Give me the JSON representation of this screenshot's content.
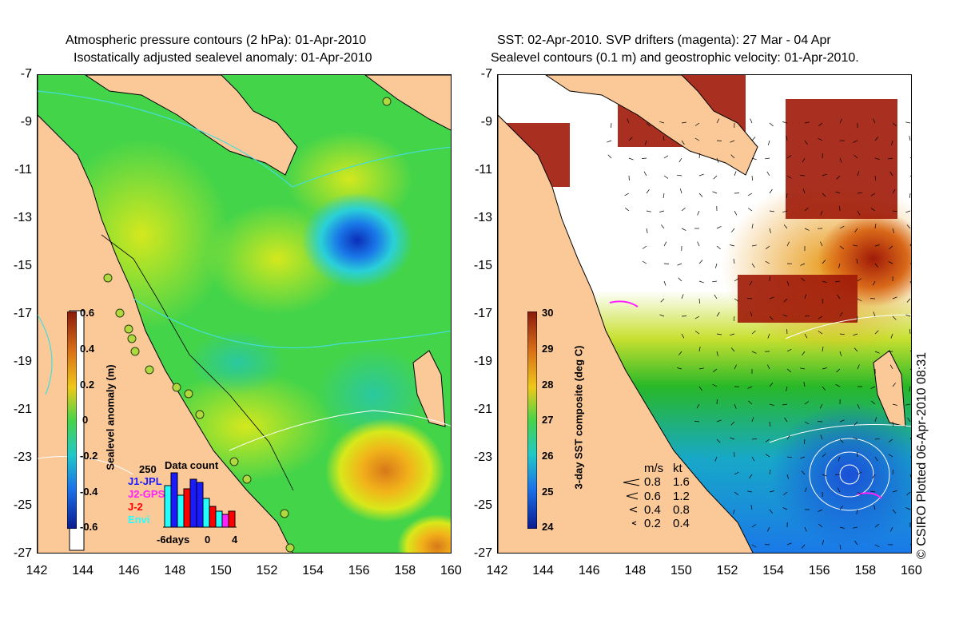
{
  "left": {
    "title_line1": "Atmospheric pressure contours (2 hPa): 01-Apr-2010",
    "title_line2": "Isostatically adjusted sealevel anomaly: 01-Apr-2010",
    "colorbar": {
      "label": "Sealevel anomaly (m)",
      "ticks": [
        "0.6",
        "0.4",
        "0.2",
        "0",
        "-0.2",
        "-0.4",
        "-0.6"
      ],
      "range": [
        -0.6,
        0.6
      ]
    },
    "data_count": {
      "title": "Data count",
      "max_label": "250",
      "missions": [
        {
          "name": "J1-JPL",
          "color": "#1a1aff"
        },
        {
          "name": "J2-GPS",
          "color": "#ff22ff"
        },
        {
          "name": "J-2",
          "color": "#ff0000"
        },
        {
          "name": "Envi",
          "color": "#22ffff"
        }
      ],
      "x_labels": [
        "-6days",
        "0",
        "4"
      ]
    }
  },
  "right": {
    "title_line1": "SST: 02-Apr-2010. SVP drifters (magenta): 27 Mar - 04 Apr",
    "title_line2": "Sealevel contours (0.1 m) and geostrophic velocity: 01-Apr-2010.",
    "colorbar": {
      "label": "3-day SST composite (deg C)",
      "ticks": [
        "30",
        "29",
        "28",
        "27",
        "26",
        "25",
        "24"
      ],
      "range": [
        24,
        30
      ]
    },
    "velocity_legend": {
      "header_ms": "m/s",
      "header_kt": "kt",
      "rows": [
        {
          "ms": "0.8",
          "kt": "1.6"
        },
        {
          "ms": "0.6",
          "kt": "1.2"
        },
        {
          "ms": "0.4",
          "kt": "0.8"
        },
        {
          "ms": "0.2",
          "kt": "0.4"
        }
      ]
    }
  },
  "axes": {
    "y_ticks": [
      "-7",
      "-9",
      "-11",
      "-13",
      "-15",
      "-17",
      "-19",
      "-21",
      "-23",
      "-25",
      "-27"
    ],
    "x_ticks": [
      "142",
      "144",
      "146",
      "148",
      "150",
      "152",
      "154",
      "156",
      "158",
      "160"
    ],
    "lon_range": [
      142,
      160
    ],
    "lat_range": [
      -27,
      -7
    ]
  },
  "credit": "© CSIRO Plotted 06-Apr-2010 08:31",
  "colors": {
    "land": "#fbc898",
    "ocean_mid": "#44d44a",
    "low_anomaly": "#0a35c8",
    "high_anomaly": "#e8901a",
    "sst_warm": "#a01a08",
    "sst_cool": "#1a7ae8"
  }
}
